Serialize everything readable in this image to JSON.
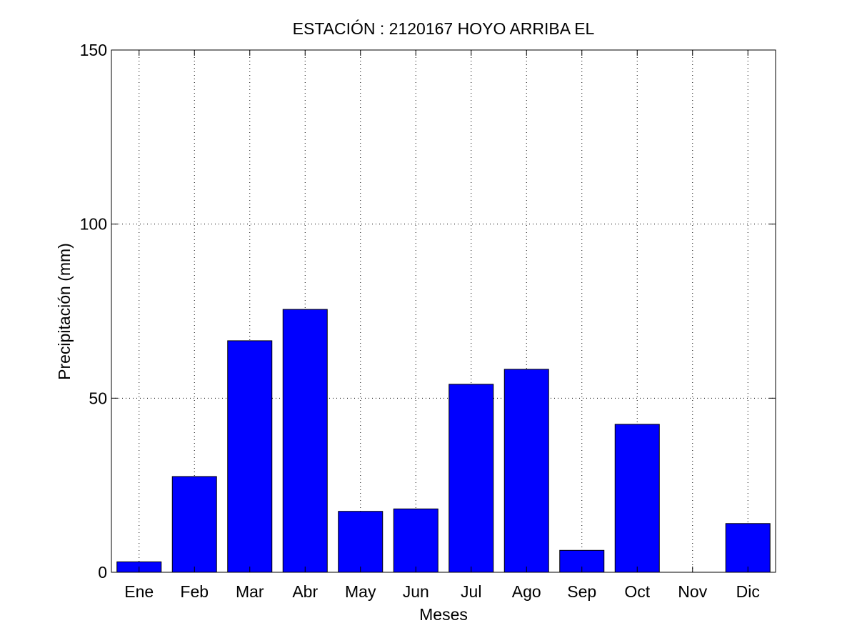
{
  "chart_data": {
    "type": "bar",
    "title": "ESTACIÓN :  2120167  HOYO ARRIBA EL",
    "xlabel": "Meses",
    "ylabel": "Precipitación (mm)",
    "categories": [
      "Ene",
      "Feb",
      "Mar",
      "Abr",
      "May",
      "Jun",
      "Jul",
      "Ago",
      "Sep",
      "Oct",
      "Nov",
      "Dic"
    ],
    "values": [
      3,
      27.5,
      66.5,
      75.5,
      17.5,
      18.2,
      54,
      58.3,
      6.3,
      42.5,
      0,
      14
    ],
    "ylim": [
      0,
      150
    ],
    "yticks": [
      "0",
      "50",
      "100",
      "150"
    ],
    "ytick_values": [
      0,
      50,
      100,
      150
    ],
    "grid": true,
    "bar_color": "#0000ff"
  }
}
